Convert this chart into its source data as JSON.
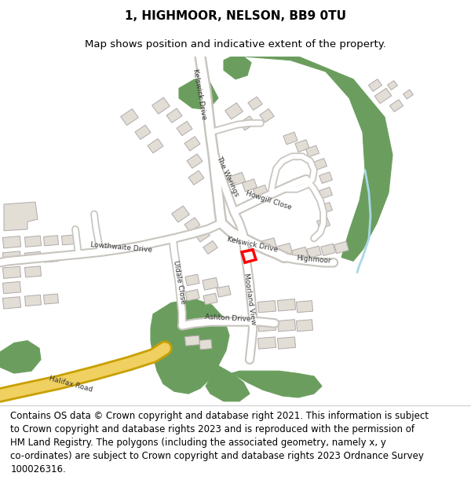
{
  "title_line1": "1, HIGHMOOR, NELSON, BB9 0TU",
  "title_line2": "Map shows position and indicative extent of the property.",
  "footer_text": "Contains OS data © Crown copyright and database right 2021. This information is subject\nto Crown copyright and database rights 2023 and is reproduced with the permission of\nHM Land Registry. The polygons (including the associated geometry, namely x, y\nco-ordinates) are subject to Crown copyright and database rights 2023 Ordnance Survey\n100026316.",
  "title_fontsize": 11,
  "subtitle_fontsize": 9.5,
  "footer_fontsize": 8.5,
  "map_bg": "#f0ece4",
  "road_color": "#ffffff",
  "road_border": "#c8c4be",
  "green_color": "#6b9e5e",
  "building_color": "#e2ddd5",
  "building_border": "#b0aaaa",
  "highlight_color": "#ff0000",
  "road_yellow_fill": "#f0d060",
  "road_yellow_border": "#c8a000",
  "fig_bg": "#ffffff",
  "border_color": "#cccccc",
  "stream_color": "#a8d8e8"
}
